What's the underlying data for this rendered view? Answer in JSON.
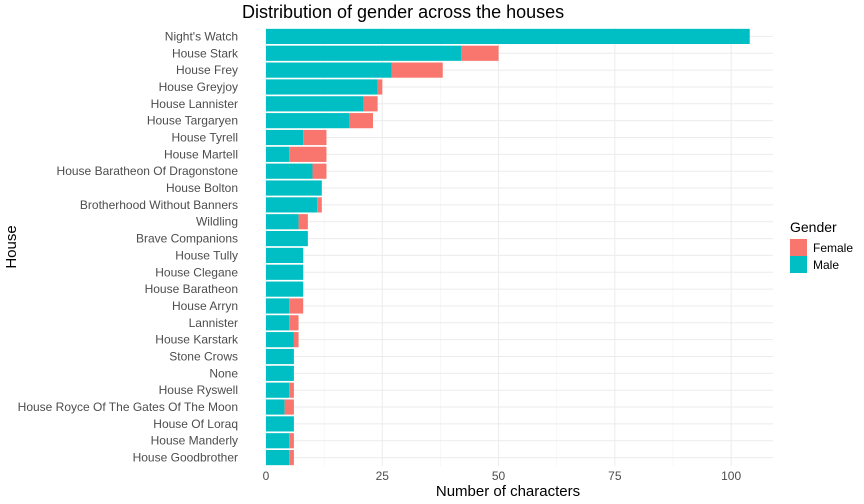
{
  "chart_data": {
    "type": "bar",
    "orientation": "horizontal",
    "stacked": true,
    "title": "Distribution of gender across the houses",
    "xlabel": "Number of characters",
    "ylabel": "House",
    "xlim": [
      0,
      109
    ],
    "xticks": [
      0,
      25,
      50,
      75,
      100
    ],
    "grid": true,
    "legend": {
      "title": "Gender",
      "position": "right"
    },
    "categories": [
      "Night's Watch",
      "House Stark",
      "House Frey",
      "House Greyjoy",
      "House Lannister",
      "House Targaryen",
      "House Tyrell",
      "House Martell",
      "House Baratheon Of Dragonstone",
      "House Bolton",
      "Brotherhood Without Banners",
      "Wildling",
      "Brave Companions",
      "House Tully",
      "House Clegane",
      "House Baratheon",
      "House Arryn",
      "Lannister",
      "House Karstark",
      "Stone Crows",
      "None",
      "House Ryswell",
      "House Royce Of The Gates Of The Moon",
      "House Of Loraq",
      "House Manderly",
      "House Goodbrother"
    ],
    "series": [
      {
        "name": "Male",
        "color": "#00BFC4",
        "values": [
          104,
          42,
          27,
          24,
          21,
          18,
          8,
          5,
          10,
          12,
          11,
          7,
          9,
          8,
          8,
          8,
          5,
          5,
          6,
          6,
          6,
          5,
          4,
          6,
          5,
          5
        ]
      },
      {
        "name": "Female",
        "color": "#F8766D",
        "values": [
          0,
          8,
          11,
          1,
          3,
          5,
          5,
          8,
          3,
          0,
          1,
          2,
          0,
          0,
          0,
          0,
          3,
          2,
          1,
          0,
          0,
          1,
          2,
          0,
          1,
          1
        ]
      }
    ],
    "legend_order": [
      "Female",
      "Male"
    ]
  }
}
